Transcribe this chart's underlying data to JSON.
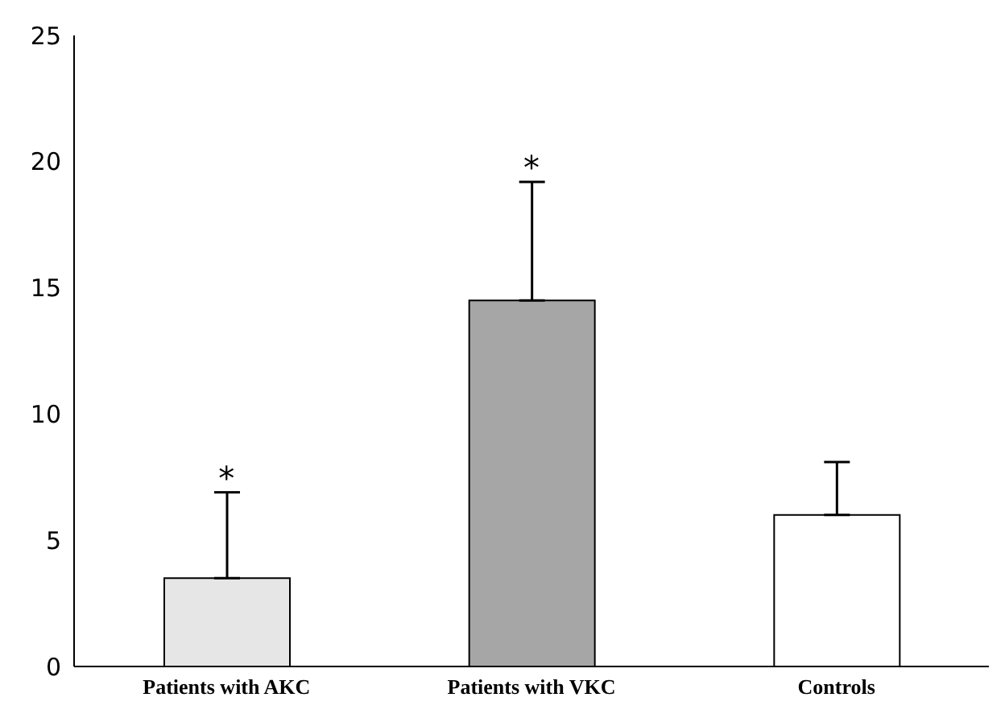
{
  "chart_data": {
    "type": "bar",
    "categories": [
      "Patients with AKC",
      "Patients with VKC",
      "Controls"
    ],
    "values": [
      3.5,
      14.5,
      6.0
    ],
    "colors": [
      "#e6e6e6",
      "#a6a6a6",
      "#ffffff"
    ],
    "errors": [
      [
        3.5,
        6.9
      ],
      [
        14.5,
        19.2
      ],
      [
        6.0,
        8.1
      ]
    ],
    "ylim": [
      0,
      25
    ],
    "yticks": [
      0,
      5,
      10,
      15,
      20,
      25
    ],
    "grid": false,
    "legend": false,
    "annotations": [
      {
        "text": "*",
        "x": "Patients with AKC",
        "y": 6.9
      },
      {
        "text": "*",
        "x": "Patients with VKC",
        "y": 19.2
      }
    ]
  }
}
